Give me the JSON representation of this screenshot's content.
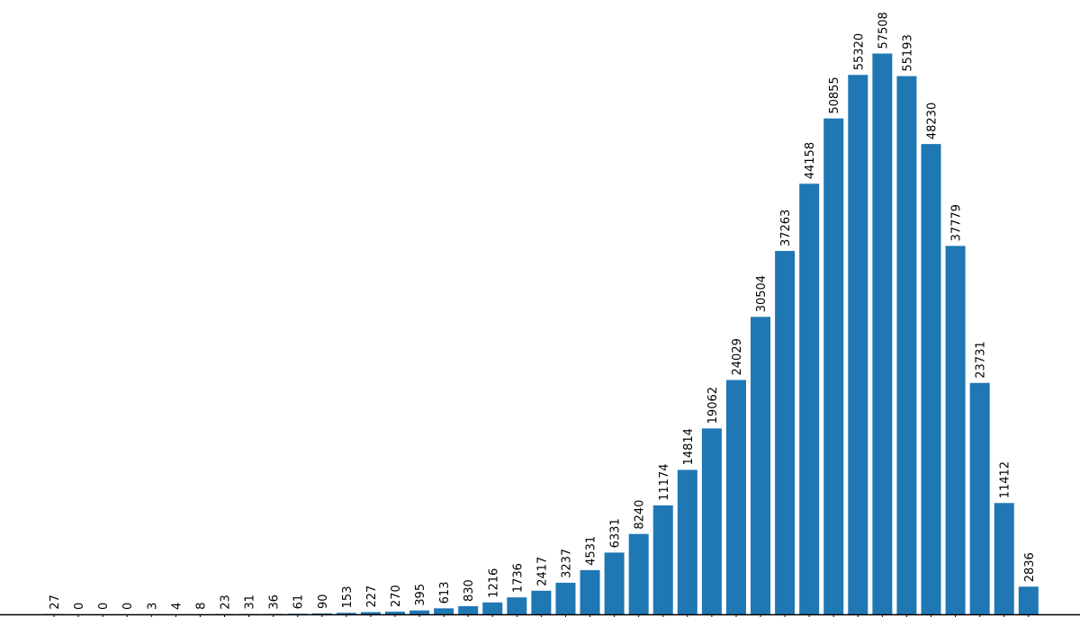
{
  "chart_data": {
    "type": "bar",
    "title": "",
    "xlabel": "",
    "ylabel": "",
    "bar_color": "#1f77b4",
    "ylim": [
      0,
      63000
    ],
    "grid": false,
    "values": [
      27,
      0,
      0,
      0,
      3,
      4,
      8,
      23,
      31,
      36,
      61,
      90,
      153,
      227,
      270,
      395,
      613,
      830,
      1216,
      1736,
      2417,
      3237,
      4531,
      6331,
      8240,
      11174,
      14814,
      19062,
      24029,
      30504,
      37263,
      44158,
      50855,
      55320,
      57508,
      55193,
      48230,
      37779,
      23731,
      11412,
      2836
    ],
    "data_labels": [
      "27",
      "0",
      "0",
      "0",
      "3",
      "4",
      "8",
      "23",
      "31",
      "36",
      "61",
      "90",
      "153",
      "227",
      "270",
      "395",
      "613",
      "830",
      "1216",
      "1736",
      "2417",
      "3237",
      "4531",
      "6331",
      "8240",
      "11174",
      "14814",
      "19062",
      "24029",
      "30504",
      "37263",
      "44158",
      "50855",
      "55320",
      "57508",
      "55193",
      "48230",
      "37779",
      "23731",
      "11412",
      "2836"
    ]
  }
}
